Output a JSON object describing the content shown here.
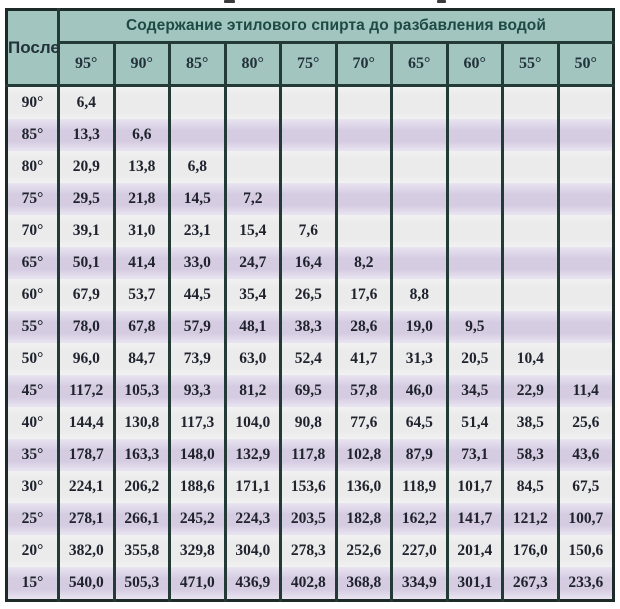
{
  "table": {
    "corner_label": "После",
    "span_header": "Содержание этилового спирта до разбавления водой",
    "column_headers": [
      "95°",
      "90°",
      "85°",
      "80°",
      "75°",
      "70°",
      "65°",
      "60°",
      "55°",
      "50°"
    ],
    "rows": [
      {
        "label": "90°",
        "values": [
          "6,4"
        ]
      },
      {
        "label": "85°",
        "values": [
          "13,3",
          "6,6"
        ]
      },
      {
        "label": "80°",
        "values": [
          "20,9",
          "13,8",
          "6,8"
        ]
      },
      {
        "label": "75°",
        "values": [
          "29,5",
          "21,8",
          "14,5",
          "7,2"
        ]
      },
      {
        "label": "70°",
        "values": [
          "39,1",
          "31,0",
          "23,1",
          "15,4",
          "7,6"
        ]
      },
      {
        "label": "65°",
        "values": [
          "50,1",
          "41,4",
          "33,0",
          "24,7",
          "16,4",
          "8,2"
        ]
      },
      {
        "label": "60°",
        "values": [
          "67,9",
          "53,7",
          "44,5",
          "35,4",
          "26,5",
          "17,6",
          "8,8"
        ]
      },
      {
        "label": "55°",
        "values": [
          "78,0",
          "67,8",
          "57,9",
          "48,1",
          "38,3",
          "28,6",
          "19,0",
          "9,5"
        ]
      },
      {
        "label": "50°",
        "values": [
          "96,0",
          "84,7",
          "73,9",
          "63,0",
          "52,4",
          "41,7",
          "31,3",
          "20,5",
          "10,4"
        ]
      },
      {
        "label": "45°",
        "values": [
          "117,2",
          "105,3",
          "93,3",
          "81,2",
          "69,5",
          "57,8",
          "46,0",
          "34,5",
          "22,9",
          "11,4"
        ]
      },
      {
        "label": "40°",
        "values": [
          "144,4",
          "130,8",
          "117,3",
          "104,0",
          "90,8",
          "77,6",
          "64,5",
          "51,4",
          "38,5",
          "25,6"
        ]
      },
      {
        "label": "35°",
        "values": [
          "178,7",
          "163,3",
          "148,0",
          "132,9",
          "117,8",
          "102,8",
          "87,9",
          "73,1",
          "58,3",
          "43,6"
        ]
      },
      {
        "label": "30°",
        "values": [
          "224,1",
          "206,2",
          "188,6",
          "171,1",
          "153,6",
          "136,0",
          "118,9",
          "101,7",
          "84,5",
          "67,5"
        ]
      },
      {
        "label": "25°",
        "values": [
          "278,1",
          "266,1",
          "245,2",
          "224,3",
          "203,5",
          "182,8",
          "162,2",
          "141,7",
          "121,2",
          "100,7"
        ]
      },
      {
        "label": "20°",
        "values": [
          "382,0",
          "355,8",
          "329,8",
          "304,0",
          "278,3",
          "252,6",
          "227,0",
          "201,4",
          "176,0",
          "150,6"
        ]
      },
      {
        "label": "15°",
        "values": [
          "540,0",
          "505,3",
          "471,0",
          "436,9",
          "402,8",
          "368,8",
          "334,9",
          "301,1",
          "267,3",
          "233,6"
        ]
      }
    ]
  },
  "colors": {
    "header_teal": "#a2c5bf",
    "header_title_text": "#1d4a44",
    "header_degree_text": "#22313a",
    "body_text": "#20232e",
    "row_gray": "#ebebeb",
    "row_lavender": "#d5cce2",
    "grid_border": "#233a37",
    "outer_border": "#1c2b28",
    "page_background": "#ffffff"
  }
}
